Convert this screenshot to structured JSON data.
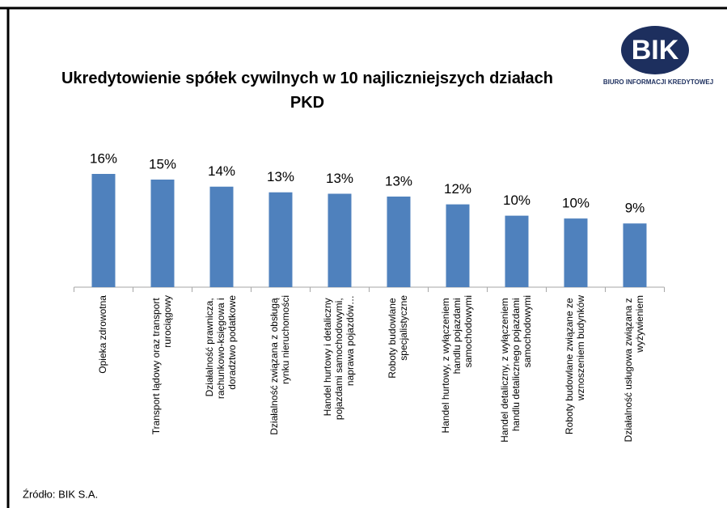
{
  "logo": {
    "name": "BIK",
    "subtitle": "BIURO INFORMACJI KREDYTOWEJ"
  },
  "source": "Źródło: BIK S.A.",
  "chart_data": {
    "type": "bar",
    "title": "Ukredytowienie spółek cywilnych w 10 najliczniejszych działach PKD",
    "categories": [
      "Opieka zdrowotna",
      "Transport lądowy oraz transport rurociągowy",
      "Działalność prawnicza, rachunkowo-księgowa i doradztwo podatkowe",
      "Działalność związana z obsługą rynku nieruchomości",
      "Handel hurtowy i detaliczny pojazdami samochodowymi, naprawa pojazdów…",
      "Roboty budowlane specjalistyczne",
      "Handel hurtowy, z wyłączeniem handlu pojazdami samochodowymi",
      "Handel detaliczny, z wyłączeniem handlu detalicznego pojazdami samochodowymi",
      "Roboty budowlane związane ze wznoszeniem budynków",
      "Działalność usługowa związana z wyżywieniem"
    ],
    "values": [
      16.0,
      15.2,
      14.2,
      13.4,
      13.2,
      12.8,
      11.7,
      10.1,
      9.7,
      9.0
    ],
    "value_labels": [
      "16%",
      "15%",
      "14%",
      "13%",
      "13%",
      "13%",
      "12%",
      "10%",
      "10%",
      "9%"
    ],
    "color": "#4f81bd",
    "ylim": [
      0,
      18
    ]
  }
}
